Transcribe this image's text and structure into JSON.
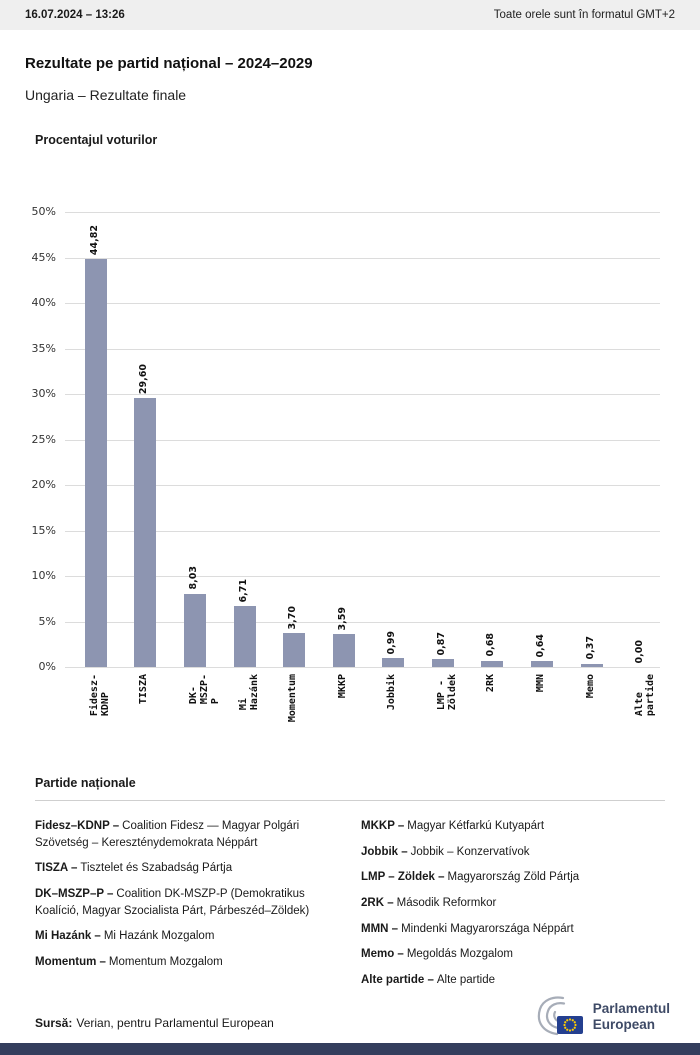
{
  "header": {
    "datetime": "16.07.2024 – 13:26",
    "timezone_note": "Toate orele sunt în formatul GMT+2"
  },
  "page": {
    "title": "Rezultate pe partid național – 2024–2029",
    "subtitle": "Ungaria – Rezultate finale"
  },
  "chart_data": {
    "type": "bar",
    "title": "Procentajul voturilor",
    "categories": [
      "Fidesz-KDNP",
      "TISZA",
      "DK-MSZP-P",
      "Mi Hazánk",
      "Momentum",
      "MKKP",
      "Jobbik",
      "LMP - Zöldek",
      "2RK",
      "MMN",
      "Memo",
      "Alte partide"
    ],
    "values": [
      44.82,
      29.6,
      8.03,
      6.71,
      3.7,
      3.59,
      0.99,
      0.87,
      0.68,
      0.64,
      0.37,
      0.0
    ],
    "value_labels": [
      "44,82",
      "29,60",
      "8,03",
      "6,71",
      "3,70",
      "3,59",
      "0,99",
      "0,87",
      "0,68",
      "0,64",
      "0,37",
      "0,00"
    ],
    "xlabel": "",
    "ylabel": "",
    "ylim": [
      0,
      50
    ],
    "ytick_step": 5,
    "ytick_suffix": "%",
    "bar_color": "#8d95b1",
    "grid": true,
    "legend_position": "none"
  },
  "legend": {
    "heading": "Partide naționale",
    "columns": [
      [
        {
          "name": "Fidesz–KDNP –",
          "desc": "Coalition Fidesz — Magyar Polgári Szövetség – Kereszténydemokrata Néppárt"
        },
        {
          "name": "TISZA –",
          "desc": "Tisztelet és Szabadság Pártja"
        },
        {
          "name": "DK–MSZP–P –",
          "desc": "Coalition DK-MSZP-P (Demokratikus Koalíció, Magyar Szocialista Párt, Párbeszéd–Zöldek)"
        },
        {
          "name": "Mi Hazánk –",
          "desc": "Mi Hazánk Mozgalom"
        },
        {
          "name": "Momentum –",
          "desc": "Momentum Mozgalom"
        }
      ],
      [
        {
          "name": "MKKP –",
          "desc": "Magyar Kétfarkú Kutyapárt"
        },
        {
          "name": "Jobbik –",
          "desc": "Jobbik – Konzervatívok"
        },
        {
          "name": "LMP – Zöldek –",
          "desc": "Magyarország Zöld Pártja"
        },
        {
          "name": "2RK –",
          "desc": "Második Reformkor"
        },
        {
          "name": "MMN –",
          "desc": "Mindenki Magyarországa Néppárt"
        },
        {
          "name": "Memo –",
          "desc": "Megoldás Mozgalom"
        },
        {
          "name": "Alte partide –",
          "desc": "Alte partide"
        }
      ]
    ]
  },
  "footer": {
    "source_label": "Sursă:",
    "source_text": "Verian, pentru Parlamentul European",
    "logo_line1": "Parlamentul",
    "logo_line2": "European",
    "bottom_bar_color": "#343e5d"
  }
}
